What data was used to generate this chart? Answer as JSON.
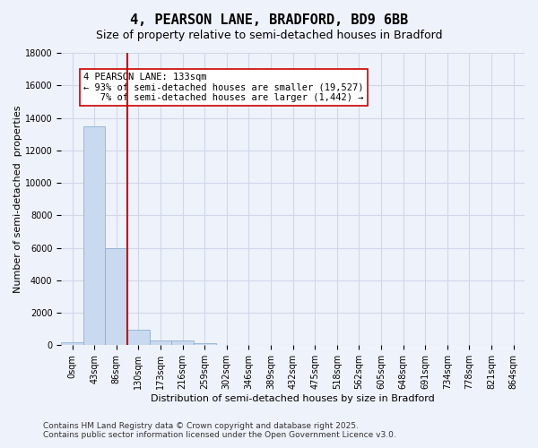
{
  "title": "4, PEARSON LANE, BRADFORD, BD9 6BB",
  "subtitle": "Size of property relative to semi-detached houses in Bradford",
  "xlabel": "Distribution of semi-detached houses by size in Bradford",
  "ylabel": "Number of semi-detached  properties",
  "bin_labels": [
    "0sqm",
    "43sqm",
    "86sqm",
    "130sqm",
    "173sqm",
    "216sqm",
    "259sqm",
    "302sqm",
    "346sqm",
    "389sqm",
    "432sqm",
    "475sqm",
    "518sqm",
    "562sqm",
    "605sqm",
    "648sqm",
    "691sqm",
    "734sqm",
    "778sqm",
    "821sqm",
    "864sqm"
  ],
  "bar_values": [
    200,
    13500,
    5950,
    950,
    320,
    290,
    120,
    0,
    0,
    0,
    0,
    0,
    0,
    0,
    0,
    0,
    0,
    0,
    0,
    0,
    0
  ],
  "bar_color": "#c9d9f0",
  "bar_edge_color": "#7fa8d0",
  "grid_color": "#d0d8e8",
  "background_color": "#eef2fa",
  "vline_x_index": 3,
  "vline_color": "#cc0000",
  "annotation_text": "4 PEARSON LANE: 133sqm\n← 93% of semi-detached houses are smaller (19,527)\n   7% of semi-detached houses are larger (1,442) →",
  "annotation_box_color": "#ffffff",
  "annotation_box_edge": "#cc0000",
  "ylim": [
    0,
    18000
  ],
  "yticks": [
    0,
    2000,
    4000,
    6000,
    8000,
    10000,
    12000,
    14000,
    16000,
    18000
  ],
  "footer_line1": "Contains HM Land Registry data © Crown copyright and database right 2025.",
  "footer_line2": "Contains public sector information licensed under the Open Government Licence v3.0.",
  "title_fontsize": 11,
  "subtitle_fontsize": 9,
  "axis_label_fontsize": 8,
  "tick_fontsize": 7,
  "annotation_fontsize": 7.5,
  "footer_fontsize": 6.5
}
